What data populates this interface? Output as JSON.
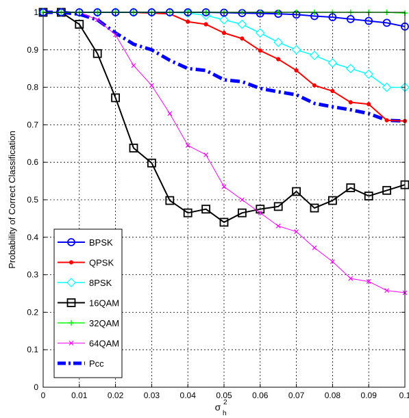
{
  "chart_data": {
    "type": "line",
    "title": "",
    "xlabel": "σ",
    "xlabel_sup": "2",
    "xlabel_sub": "h",
    "ylabel": "Probability of Correct Classification",
    "xlim": [
      0,
      0.1
    ],
    "ylim": [
      0,
      1
    ],
    "grid": true,
    "legend_position": "bottom-left",
    "x_ticks": [
      0,
      0.01,
      0.02,
      0.03,
      0.04,
      0.05,
      0.06,
      0.07,
      0.08,
      0.09,
      0.1
    ],
    "x_tick_labels": [
      "0",
      "0.01",
      "0.02",
      "0.03",
      "0.04",
      "0.05",
      "0.06",
      "0.07",
      "0.08",
      "0.09",
      "0.1"
    ],
    "y_ticks": [
      0,
      0.1,
      0.2,
      0.3,
      0.4,
      0.5,
      0.6,
      0.7,
      0.8,
      0.9,
      1
    ],
    "y_tick_labels": [
      "0",
      "0.1",
      "0.2",
      "0.3",
      "0.4",
      "0.5",
      "0.6",
      "0.7",
      "0.8",
      "0.9",
      "1"
    ],
    "x": [
      0,
      0.005,
      0.01,
      0.015,
      0.02,
      0.025,
      0.03,
      0.035,
      0.04,
      0.045,
      0.05,
      0.055,
      0.06,
      0.065,
      0.07,
      0.075,
      0.08,
      0.085,
      0.09,
      0.095,
      0.1
    ],
    "series": [
      {
        "name": "BPSK",
        "color": "#0000ff",
        "marker": "circle",
        "line_width": 2,
        "dash": "solid",
        "values": [
          1,
          1,
          1,
          1,
          1,
          1,
          1,
          1,
          1,
          1,
          0.999,
          0.998,
          0.997,
          0.996,
          0.994,
          0.99,
          0.987,
          0.982,
          0.977,
          0.972,
          0.962
        ]
      },
      {
        "name": "QPSK",
        "color": "#ff0000",
        "marker": "dot",
        "line_width": 2,
        "dash": "solid",
        "values": [
          1,
          1,
          1,
          1,
          1,
          1,
          0.998,
          0.996,
          0.975,
          0.968,
          0.945,
          0.93,
          0.898,
          0.875,
          0.845,
          0.805,
          0.79,
          0.76,
          0.755,
          0.712,
          0.71
        ]
      },
      {
        "name": "8PSK",
        "color": "#00ffff",
        "marker": "diamond",
        "line_width": 1.5,
        "dash": "solid",
        "values": [
          1,
          1,
          1,
          1,
          1,
          1,
          1,
          1,
          0.998,
          0.992,
          0.98,
          0.968,
          0.945,
          0.92,
          0.9,
          0.885,
          0.865,
          0.85,
          0.835,
          0.8,
          0.8
        ]
      },
      {
        "name": "16QAM",
        "color": "#000000",
        "marker": "square",
        "line_width": 2,
        "dash": "solid",
        "values": [
          1,
          1,
          0.968,
          0.89,
          0.772,
          0.638,
          0.598,
          0.498,
          0.465,
          0.475,
          0.44,
          0.465,
          0.475,
          0.482,
          0.522,
          0.478,
          0.498,
          0.532,
          0.51,
          0.525,
          0.54
        ]
      },
      {
        "name": "32QAM",
        "color": "#00ff00",
        "marker": "plus",
        "line_width": 1.5,
        "dash": "solid",
        "values": [
          1,
          1,
          1,
          1,
          1,
          1,
          1,
          1,
          1,
          1,
          1,
          1,
          1,
          1,
          1,
          1,
          1,
          1,
          1,
          1,
          0.998
        ]
      },
      {
        "name": "64QAM",
        "color": "#ff00ff",
        "marker": "x",
        "line_width": 1,
        "dash": "solid",
        "values": [
          1,
          1,
          1,
          0.98,
          0.94,
          0.858,
          0.805,
          0.73,
          0.645,
          0.62,
          0.535,
          0.5,
          0.465,
          0.43,
          0.415,
          0.372,
          0.335,
          0.29,
          0.282,
          0.258,
          0.252
        ]
      },
      {
        "name": "Pcc",
        "color": "#0000ff",
        "marker": "dot",
        "line_width": 5,
        "dash": "dashdot",
        "values": [
          1,
          1,
          0.995,
          0.98,
          0.945,
          0.915,
          0.9,
          0.872,
          0.85,
          0.845,
          0.82,
          0.815,
          0.797,
          0.788,
          0.78,
          0.757,
          0.748,
          0.74,
          0.73,
          0.712,
          0.71
        ]
      }
    ]
  }
}
